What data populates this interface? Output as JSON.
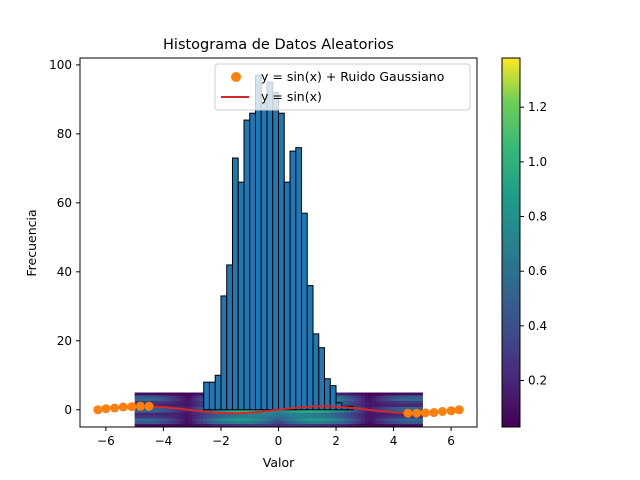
{
  "chart_data": {
    "type": "bar",
    "title": "Histograma de Datos Aleatorios",
    "xlabel": "Valor",
    "ylabel": "Frecuencia",
    "xlim": [
      -6.9,
      6.9
    ],
    "ylim": [
      -5,
      102
    ],
    "xticks": [
      -6,
      -4,
      -2,
      0,
      2,
      4,
      6
    ],
    "xtick_labels": [
      "−6",
      "−4",
      "−2",
      "0",
      "2",
      "4",
      "6"
    ],
    "yticks": [
      0,
      20,
      40,
      60,
      80,
      100
    ],
    "ytick_labels": [
      "0",
      "20",
      "40",
      "60",
      "80",
      "100"
    ],
    "grid": false,
    "legend_position": "upper right",
    "legend": [
      {
        "label": "y = sin(x) + Ruido Gaussiano",
        "color": "#ff7f0e",
        "marker": "circle"
      },
      {
        "label": "y = sin(x)",
        "color": "#d62728",
        "marker": "line"
      }
    ],
    "histogram": {
      "color": "#1f77b4",
      "edgecolor": "#000000",
      "bin_edges": [
        -2.6,
        -2.4,
        -2.2,
        -2.0,
        -1.8,
        -1.6,
        -1.4,
        -1.2,
        -1.0,
        -0.8,
        -0.6,
        -0.4,
        -0.2,
        0.0,
        0.2,
        0.4,
        0.6,
        0.8,
        1.0,
        1.2,
        1.4,
        1.6,
        1.8,
        2.0,
        2.2,
        2.4,
        2.6,
        2.8
      ],
      "counts": [
        8,
        8,
        10,
        33,
        42,
        73,
        66,
        84,
        86,
        97,
        89,
        95,
        92,
        86,
        66,
        75,
        76,
        57,
        36,
        22,
        18,
        9,
        7,
        2,
        1,
        1,
        0
      ]
    },
    "series": [
      {
        "name": "y = sin(x) + Ruido Gaussiano",
        "type": "scatter",
        "color": "#ff7f0e",
        "x": [
          -6.28,
          -6.0,
          -5.7,
          -5.4,
          -5.1,
          -4.8,
          -4.5,
          4.5,
          4.8,
          5.1,
          5.4,
          5.7,
          6.0,
          6.28
        ],
        "y": [
          0.0,
          0.3,
          0.5,
          0.8,
          0.9,
          1.0,
          1.0,
          -1.0,
          -1.0,
          -0.9,
          -0.8,
          -0.5,
          -0.3,
          0.0
        ]
      },
      {
        "name": "y = sin(x)",
        "type": "line",
        "color": "#d62728",
        "x_range": [
          -6.2832,
          6.2832
        ],
        "function": "sin"
      }
    ],
    "heatmap": {
      "colormap": "viridis",
      "extent_x": [
        -5,
        5
      ],
      "extent_y": [
        -5,
        5
      ],
      "formula": "sqrt(1 - cos(2x) sin(y)...)"
    },
    "colorbar": {
      "min": 0.03,
      "max": 1.38,
      "ticks": [
        0.2,
        0.4,
        0.6,
        0.8,
        1.0,
        1.2
      ],
      "tick_labels": [
        "0.2",
        "0.4",
        "0.6",
        "0.8",
        "1.0",
        "1.2"
      ]
    }
  }
}
